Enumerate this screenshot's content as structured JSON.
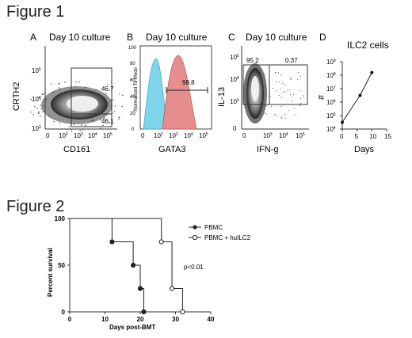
{
  "figure1": {
    "title": "Figure 1",
    "panels": [
      {
        "letter": "A",
        "title": "Day 10 culture",
        "ylabel": "CRTH2",
        "xlabel": "CD161",
        "gate_values": [
          "46.7",
          "46.1"
        ],
        "x_ticks": [
          "0",
          "10",
          "10",
          "10",
          "10"
        ],
        "x_tick_exps": [
          "",
          "2",
          "3",
          "4",
          "5"
        ],
        "y_ticks": [
          "10",
          "10",
          "10"
        ],
        "y_tick_exps": [
          "3",
          "4",
          "5"
        ]
      },
      {
        "letter": "B",
        "title": "Day 10 culture",
        "ylabel": "Normalized To Mode",
        "xlabel": "GATA3",
        "gate_value": "98.8",
        "x_ticks": [
          "0",
          "10",
          "10",
          "10",
          "10"
        ],
        "x_tick_exps": [
          "",
          "2",
          "3",
          "4",
          "5"
        ],
        "y_ticks": [
          "0",
          "20",
          "40",
          "60",
          "80",
          "100"
        ],
        "colors": {
          "cyan": "#7fd6ea",
          "red": "#e68e8e"
        }
      },
      {
        "letter": "C",
        "title": "Day 10 culture",
        "ylabel": "IL-13",
        "xlabel": "IFN-g",
        "gate_values": [
          "95.2",
          "0.37"
        ],
        "x_ticks": [
          "0",
          "10",
          "10",
          "10"
        ],
        "x_tick_exps": [
          "",
          "3",
          "4",
          "5"
        ],
        "y_ticks": [
          "0",
          "10",
          "10",
          "10"
        ],
        "y_tick_exps": [
          "",
          "3",
          "4",
          "5"
        ]
      }
    ]
  },
  "chart_data": [
    {
      "type": "line",
      "panel": "D",
      "title": "ILC2 cells",
      "xlabel": "Days",
      "ylabel": "#",
      "x": [
        0,
        6,
        10
      ],
      "y_log10": [
        4.5,
        6.5,
        8.2
      ],
      "xlim": [
        0,
        15
      ],
      "ylim_log10": [
        4,
        9
      ],
      "x_ticks": [
        "0",
        "5",
        "10",
        "15"
      ],
      "y_ticks": [
        "10",
        "10",
        "10",
        "10",
        "10",
        "10"
      ],
      "y_tick_exps": [
        "4",
        "5",
        "6",
        "7",
        "8",
        "9"
      ],
      "scale_y": "log"
    },
    {
      "type": "line",
      "title": "Figure 2",
      "xlabel": "Days post-BMT",
      "ylabel": "Percent survival",
      "xlim": [
        0,
        40
      ],
      "ylim": [
        0,
        100
      ],
      "x_ticks": [
        "0",
        "10",
        "20",
        "30",
        "40"
      ],
      "y_ticks": [
        "0",
        "50",
        "100"
      ],
      "annotation": "p<0.01",
      "series": [
        {
          "name": "PBMC",
          "marker": "filled",
          "steps": [
            [
              0,
              100
            ],
            [
              12,
              100
            ],
            [
              12,
              75
            ],
            [
              18,
              75
            ],
            [
              18,
              50
            ],
            [
              20,
              50
            ],
            [
              20,
              25
            ],
            [
              21,
              25
            ],
            [
              21,
              0
            ]
          ],
          "points": [
            [
              12,
              75
            ],
            [
              18,
              50
            ],
            [
              20,
              25
            ],
            [
              21,
              0
            ]
          ]
        },
        {
          "name": "PBMC + huILC2",
          "marker": "open",
          "steps": [
            [
              0,
              100
            ],
            [
              26,
              100
            ],
            [
              26,
              75
            ],
            [
              29,
              75
            ],
            [
              29,
              25
            ],
            [
              32,
              25
            ],
            [
              32,
              0
            ]
          ],
          "points": [
            [
              26,
              75
            ],
            [
              29,
              25
            ],
            [
              32,
              0
            ]
          ]
        }
      ]
    }
  ]
}
